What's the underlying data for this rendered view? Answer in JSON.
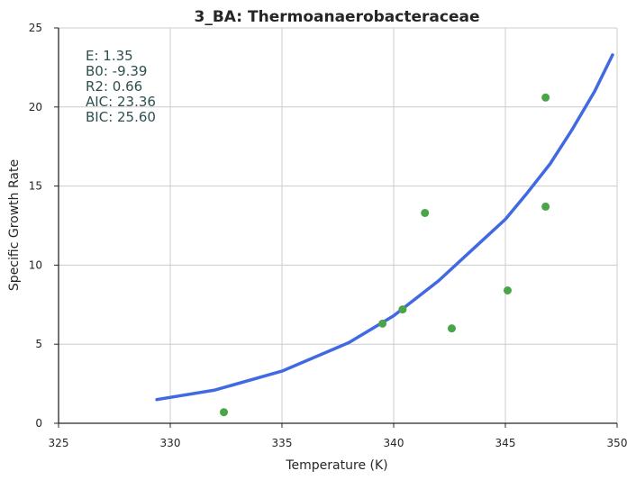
{
  "chart_data": {
    "type": "scatter",
    "title": "3_BA: Thermoanaerobacteraceae",
    "xlabel": "Temperature (K)",
    "ylabel": "Specific Growth Rate",
    "xlim": [
      325,
      350
    ],
    "ylim": [
      0,
      25
    ],
    "xticks": [
      "325",
      "330",
      "335",
      "340",
      "345",
      "350"
    ],
    "yticks": [
      "0",
      "5",
      "10",
      "15",
      "20",
      "25"
    ],
    "grid": true,
    "annotations": [
      "E:  1.35",
      "B0:  -9.39",
      "R2:  0.66",
      "AIC: 23.36",
      "BIC: 25.60"
    ],
    "series": [
      {
        "kind": "points",
        "color": "#4aa548",
        "x": [
          332.4,
          339.5,
          340.4,
          341.4,
          342.6,
          345.1,
          346.8,
          346.8
        ],
        "y": [
          0.7,
          6.3,
          7.2,
          13.3,
          6.0,
          8.4,
          13.7,
          20.6
        ]
      },
      {
        "kind": "fit-line",
        "color": "#4169e1",
        "x": [
          329.4,
          332,
          335,
          338,
          340,
          342,
          344,
          345,
          346,
          347,
          348,
          349,
          349.8
        ],
        "y": [
          1.5,
          2.1,
          3.3,
          5.1,
          6.8,
          9.0,
          11.6,
          12.9,
          14.6,
          16.4,
          18.6,
          21.0,
          23.3
        ]
      }
    ],
    "colors": {
      "axis": "#262626",
      "grid": "#cccccc"
    }
  }
}
